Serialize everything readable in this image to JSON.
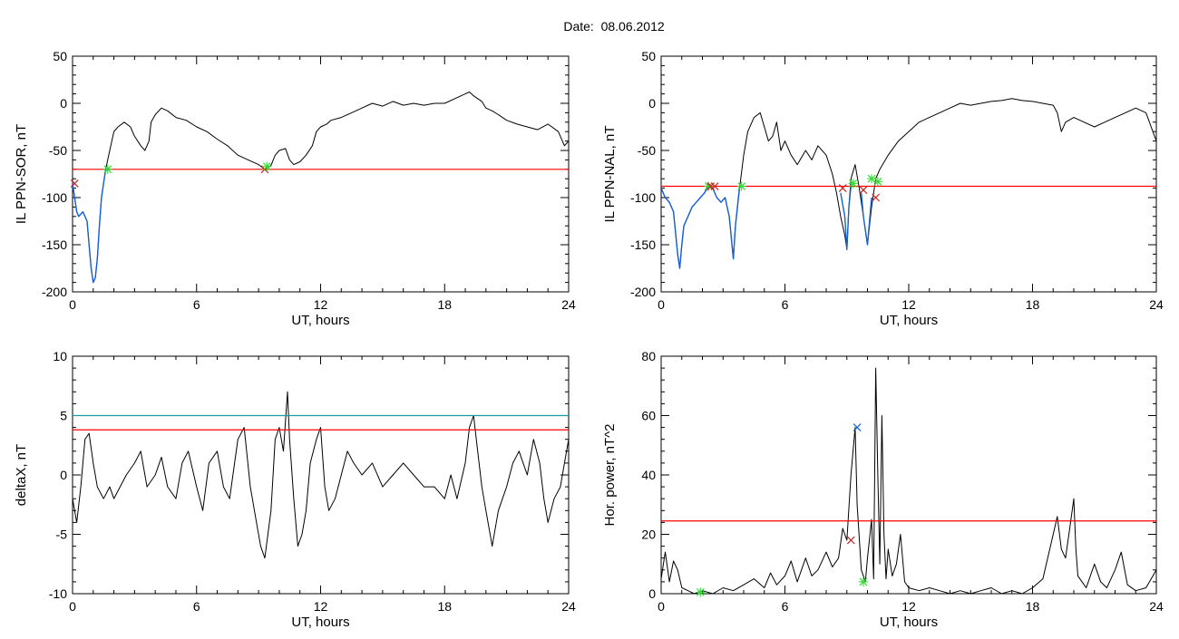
{
  "header": {
    "date_label": "Date:  08.06.2012"
  },
  "colors": {
    "trace": "#000000",
    "threshold": "#ff0000",
    "threshold_secondary": "#1a9aa0",
    "highlight": "#1560d8",
    "marker_green": "#33dd33",
    "marker_red": "#cc2222",
    "marker_blue": "#1560d8"
  },
  "chart_data": [
    {
      "type": "line",
      "panel": "top-left",
      "title": "",
      "xlabel": "UT, hours",
      "ylabel": "IL PPN-SOR, nT",
      "xlim": [
        0,
        24
      ],
      "ylim": [
        -200,
        50
      ],
      "xticks": [
        0,
        6,
        12,
        18,
        24
      ],
      "yticks": [
        -200,
        -150,
        -100,
        -50,
        0,
        50
      ],
      "threshold": -70,
      "series": [
        {
          "style": "trace",
          "x": [
            0,
            0.1,
            0.2,
            0.3,
            0.5,
            0.7,
            0.8,
            0.9,
            1.0,
            1.1,
            1.2,
            1.3,
            1.4,
            1.5,
            1.6,
            1.8,
            2.0,
            2.2,
            2.5,
            2.8,
            3.0,
            3.3,
            3.5,
            3.7,
            3.8,
            4.0,
            4.3,
            4.6,
            5.0,
            5.5,
            6.0,
            6.5,
            7.0,
            7.5,
            8.0,
            8.5,
            9.0,
            9.3,
            9.6,
            9.8,
            10.0,
            10.3,
            10.5,
            10.7,
            11.0,
            11.3,
            11.6,
            11.8,
            12.0,
            12.3,
            12.5,
            13.0,
            13.5,
            14.0,
            14.5,
            15.0,
            15.5,
            16.0,
            16.5,
            17.0,
            17.5,
            18.0,
            18.5,
            19.0,
            19.2,
            19.4,
            19.6,
            19.8,
            20.0,
            20.3,
            20.6,
            21.0,
            21.5,
            22.0,
            22.5,
            23.0,
            23.5,
            23.8,
            24.0
          ],
          "y": [
            -85,
            -100,
            -115,
            -120,
            -115,
            -125,
            -150,
            -175,
            -190,
            -185,
            -165,
            -130,
            -100,
            -85,
            -70,
            -50,
            -30,
            -25,
            -20,
            -25,
            -35,
            -45,
            -50,
            -40,
            -20,
            -12,
            -5,
            -8,
            -15,
            -18,
            -25,
            -30,
            -38,
            -45,
            -55,
            -60,
            -65,
            -70,
            -66,
            -55,
            -50,
            -48,
            -60,
            -65,
            -62,
            -55,
            -45,
            -30,
            -25,
            -22,
            -18,
            -15,
            -10,
            -5,
            0,
            -3,
            2,
            -2,
            0,
            -2,
            0,
            0,
            5,
            10,
            12,
            8,
            5,
            2,
            -5,
            -8,
            -12,
            -18,
            -22,
            -25,
            -28,
            -22,
            -30,
            -45,
            -40
          ]
        },
        {
          "style": "highlight",
          "x": [
            0,
            0.1,
            0.2,
            0.3,
            0.5,
            0.7,
            0.8,
            0.9,
            1.0,
            1.1,
            1.2,
            1.3,
            1.4,
            1.5,
            1.6,
            1.8
          ],
          "y": [
            -85,
            -100,
            -115,
            -120,
            -115,
            -125,
            -150,
            -175,
            -190,
            -185,
            -165,
            -130,
            -100,
            -85,
            -70,
            -70
          ]
        }
      ],
      "markers": [
        {
          "x": 0.1,
          "y": -85,
          "color": "red"
        },
        {
          "x": 1.7,
          "y": -70,
          "color": "green"
        },
        {
          "x": 9.3,
          "y": -70,
          "color": "red"
        },
        {
          "x": 9.4,
          "y": -67,
          "color": "green"
        }
      ]
    },
    {
      "type": "line",
      "panel": "top-right",
      "title": "",
      "xlabel": "UT, hours",
      "ylabel": "IL PPN-NAL, nT",
      "xlim": [
        0,
        24
      ],
      "ylim": [
        -200,
        50
      ],
      "xticks": [
        0,
        6,
        12,
        18,
        24
      ],
      "yticks": [
        -200,
        -150,
        -100,
        -50,
        0,
        50
      ],
      "threshold": -88,
      "series": [
        {
          "style": "trace",
          "x": [
            0,
            0.2,
            0.4,
            0.6,
            0.8,
            0.9,
            1.0,
            1.1,
            1.3,
            1.5,
            1.7,
            1.9,
            2.1,
            2.3,
            2.5,
            2.7,
            2.9,
            3.1,
            3.3,
            3.5,
            3.6,
            3.8,
            4.0,
            4.2,
            4.5,
            4.8,
            5.0,
            5.2,
            5.4,
            5.6,
            5.8,
            6.0,
            6.3,
            6.6,
            7.0,
            7.3,
            7.6,
            8.0,
            8.3,
            8.5,
            8.7,
            8.9,
            9.0,
            9.1,
            9.2,
            9.4,
            9.6,
            9.8,
            10.0,
            10.2,
            10.4,
            10.6,
            11.0,
            11.5,
            12.0,
            12.5,
            13.0,
            13.5,
            14.0,
            14.5,
            15.0,
            15.5,
            16.0,
            16.5,
            17.0,
            17.5,
            18.0,
            18.5,
            19.0,
            19.2,
            19.4,
            19.6,
            20.0,
            20.5,
            21.0,
            21.5,
            22.0,
            22.5,
            23.0,
            23.5,
            24.0
          ],
          "y": [
            -90,
            -100,
            -105,
            -115,
            -160,
            -175,
            -150,
            -130,
            -120,
            -110,
            -105,
            -100,
            -95,
            -85,
            -90,
            -100,
            -105,
            -100,
            -120,
            -165,
            -130,
            -90,
            -55,
            -30,
            -15,
            -10,
            -25,
            -40,
            -35,
            -20,
            -50,
            -40,
            -55,
            -65,
            -50,
            -60,
            -45,
            -55,
            -75,
            -95,
            -120,
            -140,
            -155,
            -110,
            -80,
            -65,
            -90,
            -120,
            -150,
            -110,
            -80,
            -70,
            -55,
            -40,
            -30,
            -20,
            -15,
            -10,
            -5,
            0,
            -2,
            0,
            2,
            3,
            5,
            3,
            2,
            0,
            -2,
            -10,
            -30,
            -20,
            -15,
            -20,
            -25,
            -20,
            -15,
            -10,
            -5,
            -10,
            -40
          ]
        },
        {
          "style": "highlight",
          "x": [
            0,
            0.2,
            0.4,
            0.6,
            0.8,
            0.9,
            1.0,
            1.1,
            1.3,
            1.5,
            1.7,
            1.9,
            2.1,
            2.3,
            2.5,
            2.7,
            2.9,
            3.1,
            3.3,
            3.5,
            3.6,
            3.8
          ],
          "y": [
            -90,
            -100,
            -105,
            -115,
            -160,
            -175,
            -150,
            -130,
            -120,
            -110,
            -105,
            -100,
            -95,
            -88,
            -90,
            -100,
            -105,
            -100,
            -120,
            -165,
            -130,
            -88
          ]
        },
        {
          "style": "highlight",
          "x": [
            8.7,
            8.9,
            9.0,
            9.1,
            9.2
          ],
          "y": [
            -95,
            -120,
            -155,
            -110,
            -88
          ]
        },
        {
          "style": "highlight",
          "x": [
            9.7,
            9.8,
            10.0,
            10.2
          ],
          "y": [
            -95,
            -120,
            -150,
            -100
          ]
        }
      ],
      "markers": [
        {
          "x": 2.3,
          "y": -88,
          "color": "green"
        },
        {
          "x": 2.4,
          "y": -88,
          "color": "red"
        },
        {
          "x": 2.6,
          "y": -88,
          "color": "red"
        },
        {
          "x": 3.9,
          "y": -88,
          "color": "green"
        },
        {
          "x": 8.8,
          "y": -90,
          "color": "red"
        },
        {
          "x": 9.3,
          "y": -85,
          "color": "green"
        },
        {
          "x": 9.8,
          "y": -92,
          "color": "red"
        },
        {
          "x": 10.2,
          "y": -80,
          "color": "green"
        },
        {
          "x": 10.4,
          "y": -100,
          "color": "red"
        },
        {
          "x": 10.5,
          "y": -83,
          "color": "green"
        }
      ]
    },
    {
      "type": "line",
      "panel": "bottom-left",
      "title": "",
      "xlabel": "UT, hours",
      "ylabel": "deltaX, nT",
      "xlim": [
        0,
        24
      ],
      "ylim": [
        -10,
        10
      ],
      "xticks": [
        0,
        6,
        12,
        18,
        24
      ],
      "yticks": [
        -10,
        -5,
        0,
        5,
        10
      ],
      "threshold": 3.8,
      "threshold_secondary": 5.0,
      "series": [
        {
          "style": "trace",
          "x": [
            0,
            0.2,
            0.4,
            0.6,
            0.8,
            1.0,
            1.2,
            1.5,
            1.8,
            2.0,
            2.3,
            2.6,
            3.0,
            3.3,
            3.6,
            4.0,
            4.3,
            4.6,
            5.0,
            5.3,
            5.6,
            6.0,
            6.3,
            6.6,
            7.0,
            7.3,
            7.6,
            8.0,
            8.3,
            8.6,
            8.9,
            9.1,
            9.3,
            9.6,
            9.8,
            10.0,
            10.2,
            10.4,
            10.5,
            10.7,
            10.9,
            11.1,
            11.3,
            11.5,
            11.8,
            12.0,
            12.2,
            12.4,
            12.7,
            13.0,
            13.3,
            13.6,
            14.0,
            14.5,
            15.0,
            15.5,
            16.0,
            16.5,
            17.0,
            17.5,
            18.0,
            18.3,
            18.6,
            19.0,
            19.2,
            19.4,
            19.6,
            19.8,
            20.0,
            20.3,
            20.6,
            21.0,
            21.3,
            21.6,
            22.0,
            22.3,
            22.6,
            22.8,
            23.0,
            23.3,
            23.6,
            23.8,
            24.0
          ],
          "y": [
            -2,
            -4,
            -1,
            3,
            3.5,
            1,
            -1,
            -2,
            -1,
            -2,
            -1,
            0,
            1,
            2,
            -1,
            0,
            1.5,
            -1,
            -2,
            1,
            2,
            -1,
            -3,
            1,
            2,
            -1,
            -2,
            3,
            4,
            -1,
            -4,
            -6,
            -7,
            -3,
            3,
            4,
            2,
            7,
            3,
            -2,
            -6,
            -5,
            -3,
            1,
            3,
            4,
            -1,
            -3,
            -2,
            0,
            2,
            1,
            0,
            1,
            -1,
            0,
            1,
            0,
            -1,
            -1,
            -2,
            0,
            -2,
            1,
            4,
            5,
            2,
            -1,
            -3,
            -6,
            -3,
            -1,
            1,
            2,
            0,
            3,
            1,
            -2,
            -4,
            -2,
            -1,
            1,
            3
          ]
        }
      ],
      "markers": []
    },
    {
      "type": "line",
      "panel": "bottom-right",
      "title": "",
      "xlabel": "UT, hours",
      "ylabel": "Hor. power, nT^2",
      "xlim": [
        0,
        24
      ],
      "ylim": [
        0,
        80
      ],
      "xticks": [
        0,
        6,
        12,
        18,
        24
      ],
      "yticks": [
        0,
        20,
        40,
        60,
        80
      ],
      "threshold": 24.5,
      "series": [
        {
          "style": "trace",
          "x": [
            0,
            0.2,
            0.4,
            0.6,
            0.8,
            1.0,
            1.3,
            1.6,
            2.0,
            2.5,
            3.0,
            3.5,
            4.0,
            4.5,
            5.0,
            5.3,
            5.6,
            6.0,
            6.3,
            6.6,
            7.0,
            7.3,
            7.6,
            8.0,
            8.3,
            8.6,
            8.8,
            9.0,
            9.2,
            9.4,
            9.5,
            9.7,
            9.9,
            10.0,
            10.2,
            10.3,
            10.4,
            10.5,
            10.6,
            10.7,
            10.8,
            10.9,
            11.0,
            11.2,
            11.4,
            11.6,
            11.8,
            12.0,
            12.5,
            13.0,
            13.5,
            14.0,
            14.5,
            15.0,
            15.5,
            16.0,
            16.5,
            17.0,
            17.5,
            18.0,
            18.5,
            19.0,
            19.2,
            19.4,
            19.6,
            19.8,
            20.0,
            20.1,
            20.2,
            20.4,
            20.6,
            21.0,
            21.3,
            21.6,
            22.0,
            22.3,
            22.6,
            23.0,
            23.5,
            24.0
          ],
          "y": [
            5,
            14,
            4,
            11,
            8,
            2,
            1,
            0,
            1,
            0,
            2,
            1,
            3,
            5,
            2,
            7,
            3,
            6,
            11,
            4,
            12,
            6,
            8,
            14,
            9,
            12,
            22,
            18,
            40,
            56,
            30,
            8,
            4,
            12,
            25,
            5,
            76,
            40,
            10,
            60,
            20,
            5,
            15,
            6,
            10,
            20,
            4,
            2,
            1,
            2,
            1,
            0,
            1,
            0,
            1,
            2,
            0,
            1,
            0,
            2,
            5,
            20,
            26,
            15,
            12,
            22,
            32,
            15,
            6,
            4,
            2,
            10,
            4,
            2,
            8,
            14,
            3,
            1,
            2,
            8
          ]
        }
      ],
      "markers": [
        {
          "x": 1.9,
          "y": 0.5,
          "color": "green"
        },
        {
          "x": 9.2,
          "y": 18,
          "color": "red"
        },
        {
          "x": 9.5,
          "y": 56,
          "color": "blue"
        },
        {
          "x": 9.8,
          "y": 4,
          "color": "green"
        }
      ]
    }
  ]
}
